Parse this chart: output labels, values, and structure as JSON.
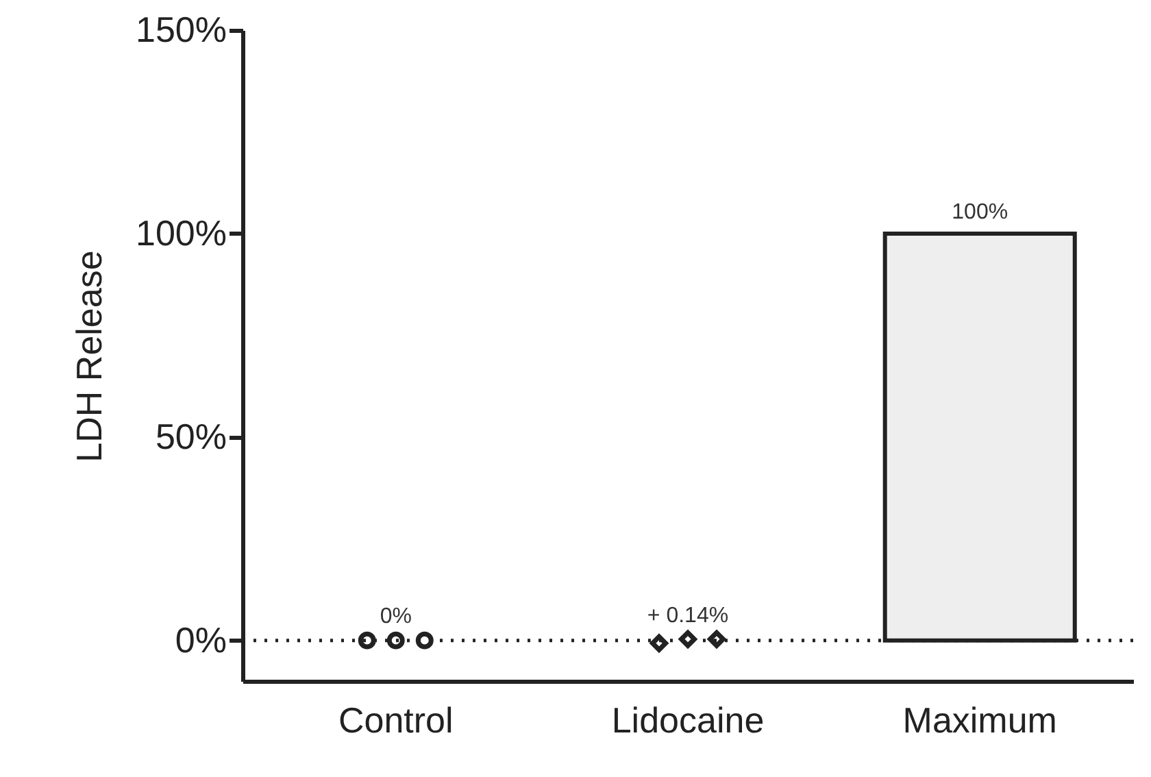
{
  "chart_data": {
    "type": "bar",
    "ylabel": "LDH Release",
    "categories": [
      "Control",
      "Lidocaine",
      "Maximum"
    ],
    "series": [
      {
        "color": "#eeeeee",
        "values": [
          null,
          null,
          100
        ],
        "value_labels": [
          null,
          null,
          "100%"
        ]
      },
      {
        "type": "scatter",
        "marker": "circle",
        "color": "#222222",
        "x": [
          "Control",
          "Control",
          "Control"
        ],
        "values": [
          0,
          0,
          0
        ]
      },
      {
        "type": "scatter",
        "marker": "diamond",
        "color": "#222222",
        "x": [
          "Lidocaine",
          "Lidocaine",
          "Lidocaine"
        ],
        "values": [
          -0.7,
          0.3,
          0.3
        ]
      }
    ],
    "annotations": [
      {
        "text": "0%",
        "x": "Control",
        "y": 0
      },
      {
        "text": "+ 0.14%",
        "x": "Lidocaine",
        "y": 0.14
      }
    ],
    "ref_lines": [
      {
        "axis": "y",
        "value": 0,
        "line_style": "dotted",
        "color": "#222222"
      }
    ],
    "ylim": [
      -10,
      150
    ],
    "yticks": [
      {
        "value": 0,
        "label": "0%"
      },
      {
        "value": 50,
        "label": "50%"
      },
      {
        "value": 100,
        "label": "100%"
      },
      {
        "value": 150,
        "label": "150%"
      }
    ],
    "grid": false
  }
}
